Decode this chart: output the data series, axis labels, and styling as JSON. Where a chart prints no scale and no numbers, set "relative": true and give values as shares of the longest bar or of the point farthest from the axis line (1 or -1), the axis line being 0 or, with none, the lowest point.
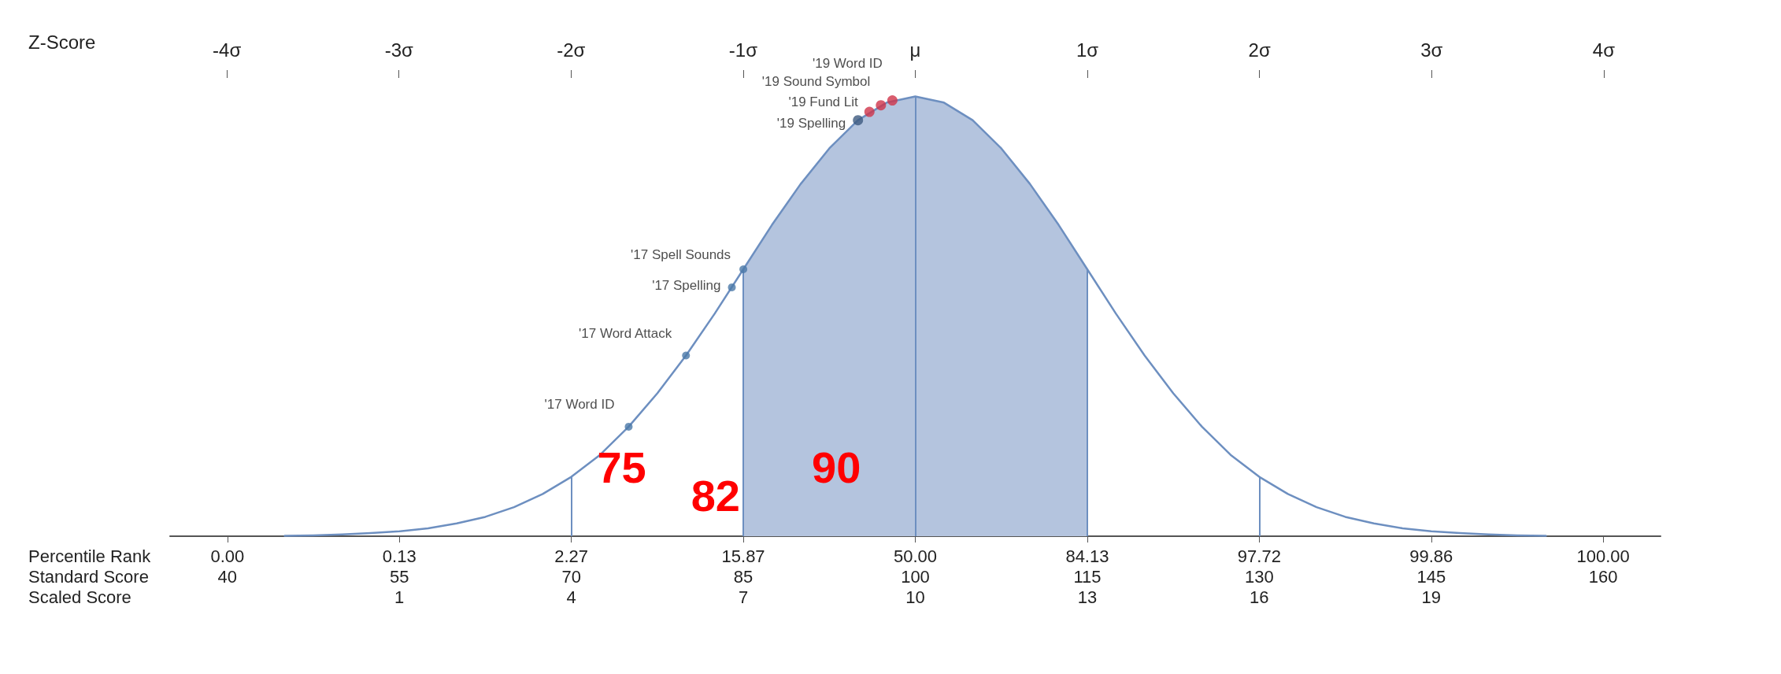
{
  "chart_data": {
    "type": "line",
    "relative": true,
    "xlabel": "Standard Score",
    "xlim": [
      35,
      165
    ],
    "xticks": [
      40,
      55,
      70,
      85,
      100,
      115,
      130,
      145,
      160
    ],
    "x2label": "Z-Score",
    "x2lim": [
      -4.33,
      4.33
    ],
    "x2ticks": [
      {
        "value": -4,
        "label": "-4σ"
      },
      {
        "value": -3,
        "label": "-3σ"
      },
      {
        "value": -2,
        "label": "-2σ"
      },
      {
        "value": -1,
        "label": "-1σ"
      },
      {
        "value": 0,
        "label": "μ"
      },
      {
        "value": 1,
        "label": "1σ"
      },
      {
        "value": 2,
        "label": "2σ"
      },
      {
        "value": 3,
        "label": "3σ"
      },
      {
        "value": 4,
        "label": "4σ"
      }
    ],
    "grid": false,
    "legend": false,
    "series": [
      {
        "color": "#6d8fc0",
        "x": [
          45,
          47.5,
          50,
          52.5,
          55,
          57.5,
          60,
          62.5,
          65,
          67.5,
          70,
          72.5,
          75,
          77.5,
          80,
          82.5,
          85,
          87.5,
          90,
          92.5,
          95,
          97.5,
          100,
          102.5,
          105,
          107.5,
          110,
          112.5,
          115,
          117.5,
          120,
          122.5,
          125,
          127.5,
          130,
          132.5,
          135,
          137.5,
          140,
          142.5,
          145,
          147.5,
          150,
          152.5,
          155
        ],
        "values": [
          0.001,
          0.002,
          0.004,
          0.007,
          0.011,
          0.018,
          0.029,
          0.044,
          0.066,
          0.096,
          0.135,
          0.185,
          0.249,
          0.325,
          0.411,
          0.506,
          0.607,
          0.708,
          0.801,
          0.882,
          0.946,
          0.986,
          1,
          0.986,
          0.946,
          0.882,
          0.801,
          0.708,
          0.607,
          0.506,
          0.411,
          0.325,
          0.249,
          0.185,
          0.135,
          0.096,
          0.066,
          0.044,
          0.029,
          0.018,
          0.011,
          0.007,
          0.004,
          0.002,
          0.001
        ]
      },
      {
        "type": "area",
        "color": "#b4c4de",
        "x": [
          85,
          87.5,
          90,
          92.5,
          95,
          97.5,
          100,
          102.5,
          105,
          107.5,
          110,
          112.5,
          115
        ],
        "values": [
          0.607,
          0.708,
          0.801,
          0.882,
          0.946,
          0.986,
          1,
          0.986,
          0.946,
          0.882,
          0.801,
          0.708,
          0.607
        ]
      },
      {
        "type": "scatter",
        "name": "'17 Word ID",
        "color": "#4a78a8",
        "x": [
          75
        ],
        "values": [
          0.249
        ]
      },
      {
        "type": "scatter",
        "name": "'17 Word Attack",
        "color": "#4a78a8",
        "x": [
          80
        ],
        "values": [
          0.411
        ]
      },
      {
        "type": "scatter",
        "name": "'17 Spelling",
        "color": "#4a78a8",
        "x": [
          84
        ],
        "values": [
          0.566
        ]
      },
      {
        "type": "scatter",
        "name": "'17 Spell Sounds",
        "color": "#4a78a8",
        "x": [
          85
        ],
        "values": [
          0.607
        ]
      },
      {
        "type": "scatter",
        "name": "'19 Spelling",
        "color": "#3d5a80",
        "x": [
          95
        ],
        "values": [
          0.946
        ]
      },
      {
        "type": "scatter",
        "name": "'19 Fund Lit",
        "color": "#d0344a",
        "x": [
          96
        ],
        "values": [
          0.965
        ]
      },
      {
        "type": "scatter",
        "name": "'19 Sound Symbol",
        "color": "#d0344a",
        "x": [
          97
        ],
        "values": [
          0.98
        ]
      },
      {
        "type": "scatter",
        "name": "'19 Word ID",
        "color": "#d0344a",
        "x": [
          98
        ],
        "values": [
          0.991
        ]
      }
    ],
    "ref_lines": [
      {
        "axis": "x",
        "value": 70,
        "color": "#6d8fc0"
      },
      {
        "axis": "x",
        "value": 85,
        "color": "#6d8fc0"
      },
      {
        "axis": "x",
        "value": 100,
        "color": "#6d8fc0"
      },
      {
        "axis": "x",
        "value": 115,
        "color": "#6d8fc0"
      },
      {
        "axis": "x",
        "value": 130,
        "color": "#6d8fc0"
      }
    ],
    "annotations": [
      "Percentile Rank",
      "Scaled Score",
      "75",
      "82",
      "90",
      "0.00",
      "0.13",
      "2.27",
      "15.87",
      "50.00",
      "84.13",
      "97.72",
      "99.86",
      "100.00",
      "1",
      "4",
      "7",
      "10",
      "13",
      "16",
      "19"
    ]
  }
}
